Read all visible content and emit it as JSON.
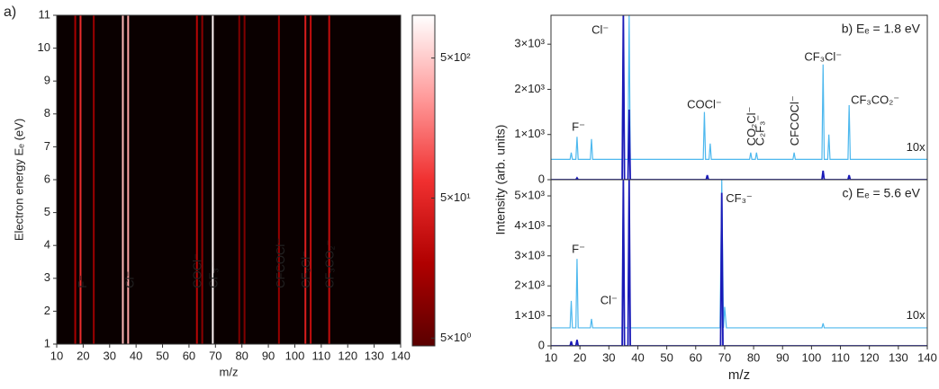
{
  "chart_data": [
    {
      "type": "heatmap",
      "panel": "a)",
      "xlabel": "m/z",
      "ylabel": "Electron energy Eₑ (eV)",
      "xlim": [
        10,
        140
      ],
      "xticks": [
        10,
        20,
        30,
        40,
        50,
        60,
        70,
        80,
        90,
        100,
        110,
        120,
        130,
        140
      ],
      "ylim": [
        1,
        11
      ],
      "yticks": [
        1,
        2,
        3,
        4,
        5,
        6,
        7,
        8,
        9,
        10,
        11
      ],
      "clim": [
        4.4,
        1010
      ],
      "clog": true,
      "colormap": [
        "#5a0000",
        "#b00000",
        "#f03030",
        "#ff9a9a",
        "#ffffff"
      ],
      "cticks": [
        {
          "value": 5,
          "label": "5×10⁰"
        },
        {
          "value": 50,
          "label": "5×10¹"
        },
        {
          "value": 500,
          "label": "5×10²"
        }
      ],
      "stripes": {
        "x": [
          17,
          19,
          24,
          35,
          37,
          63,
          65,
          69,
          79,
          81,
          94,
          104,
          106,
          113
        ],
        "values": [
          15,
          60,
          12,
          400,
          300,
          20,
          10,
          900,
          8,
          8,
          12,
          40,
          25,
          25
        ]
      },
      "annotations": [
        {
          "text": "F⁻",
          "x": 20,
          "y": 2.7,
          "color": "#33c8e8"
        },
        {
          "text": "Cl⁻",
          "x": 38,
          "y": 2.7,
          "color": "#33c8e8"
        },
        {
          "text": "COCl⁻",
          "x": 63.5,
          "y": 2.7,
          "color": "#33c8e8"
        },
        {
          "text": "CF₃⁻",
          "x": 69.5,
          "y": 2.7,
          "color": "#33c8e8"
        },
        {
          "text": "CFCOCl⁻",
          "x": 95,
          "y": 2.7,
          "color": "#33c8e8"
        },
        {
          "text": "CF₃Cl⁻",
          "x": 104.5,
          "y": 2.7,
          "color": "#33c8e8"
        },
        {
          "text": "CF₃CO₂⁻",
          "x": 113.5,
          "y": 2.7,
          "color": "#cccccc"
        }
      ]
    },
    {
      "type": "spectrum",
      "title": "b) Eₑ = 1.8 eV",
      "ylabel": "Intensity (arb. units)",
      "xlim": [
        10,
        140
      ],
      "ylim": [
        0,
        3640
      ],
      "yticks": [
        0,
        {
          "value": 1000,
          "label": "1×10³"
        },
        {
          "value": 2000,
          "label": "2×10³"
        },
        {
          "value": 3000,
          "label": "3×10³"
        }
      ],
      "series": [
        {
          "name": "10x",
          "color": "#4db8ee",
          "x": [
            10,
            16.6,
            17,
            17.4,
            18.6,
            19,
            19.4,
            23.6,
            24,
            24.4,
            34.6,
            35,
            35.4,
            36.6,
            37,
            37.4,
            62.6,
            63,
            63.4,
            64.6,
            65,
            65.4,
            78.6,
            79,
            79.4,
            80.6,
            81,
            81.4,
            93.6,
            94,
            94.4,
            103.6,
            104,
            104.4,
            105.6,
            106,
            106.4,
            112.6,
            113,
            113.4,
            140
          ],
          "values": [
            450,
            450,
            600,
            450,
            450,
            950,
            450,
            450,
            900,
            450,
            450,
            3640,
            450,
            450,
            3640,
            450,
            450,
            1500,
            450,
            450,
            800,
            450,
            450,
            600,
            450,
            450,
            600,
            450,
            450,
            600,
            450,
            450,
            2550,
            450,
            450,
            1000,
            450,
            450,
            1650,
            450,
            450
          ]
        },
        {
          "color": "#1a1ab8",
          "x": [
            10,
            18.6,
            19,
            19.4,
            34.6,
            35,
            35.4,
            36.6,
            37,
            37.4,
            63.6,
            64,
            64.4,
            103.6,
            104,
            104.4,
            112.6,
            113,
            113.4,
            140
          ],
          "values": [
            0,
            0,
            40,
            0,
            0,
            3640,
            0,
            0,
            1550,
            0,
            0,
            100,
            0,
            0,
            200,
            0,
            0,
            100,
            0,
            0
          ]
        }
      ],
      "annotations": [
        {
          "text": "Cl⁻",
          "x": 27,
          "y": 3300,
          "color": "#111"
        },
        {
          "text": "F⁻",
          "x": 19.5,
          "y": 1150,
          "color": "#111"
        },
        {
          "text": "COCl⁻",
          "x": 63,
          "y": 1650,
          "color": "#111"
        },
        {
          "text": "CO₂Cl⁻",
          "x": 79.5,
          "y": 750,
          "color": "#999",
          "rotated": true
        },
        {
          "text": "C₂F₃⁻",
          "x": 82.5,
          "y": 750,
          "color": "#111",
          "rotated": true
        },
        {
          "text": "CFCOCl⁻",
          "x": 94.5,
          "y": 750,
          "color": "#111",
          "rotated": true
        },
        {
          "text": "CF₃Cl⁻",
          "x": 104,
          "y": 2700,
          "color": "#111"
        },
        {
          "text": "CF₃CO₂⁻",
          "x": 122,
          "y": 1750,
          "color": "#999"
        },
        {
          "text": "10x",
          "x": 136,
          "y": 700,
          "color": "#4db8ee"
        }
      ]
    },
    {
      "type": "spectrum",
      "title": "c) Eₑ = 5.6 eV",
      "xlabel": "m/z",
      "xlim": [
        10,
        140
      ],
      "xticks": [
        10,
        20,
        30,
        40,
        50,
        60,
        70,
        80,
        90,
        100,
        110,
        120,
        130,
        140
      ],
      "ylim": [
        0,
        5540
      ],
      "yticks": [
        0,
        {
          "value": 1000,
          "label": "1×10³"
        },
        {
          "value": 2000,
          "label": "2×10³"
        },
        {
          "value": 3000,
          "label": "3×10³"
        },
        {
          "value": 4000,
          "label": "4×10³"
        },
        {
          "value": 5000,
          "label": "5×10³"
        }
      ],
      "series": [
        {
          "name": "10x",
          "color": "#4db8ee",
          "x": [
            10,
            16.6,
            17,
            17.4,
            18.6,
            19,
            19.4,
            23.6,
            24,
            24.4,
            34.6,
            35,
            35.4,
            36.6,
            37,
            37.4,
            68.4,
            69,
            69.6,
            70,
            70.6,
            103.6,
            104,
            104.4,
            140
          ],
          "values": [
            600,
            600,
            1500,
            600,
            600,
            2900,
            600,
            600,
            900,
            600,
            600,
            5540,
            600,
            600,
            5540,
            600,
            600,
            5540,
            600,
            1300,
            600,
            600,
            750,
            600,
            600
          ]
        },
        {
          "color": "#1a1ab8",
          "x": [
            10,
            16.6,
            17,
            17.4,
            18.6,
            19,
            19.4,
            34.6,
            35,
            35.4,
            36.6,
            37,
            37.4,
            68.6,
            69,
            69.4,
            140
          ],
          "values": [
            0,
            0,
            150,
            0,
            0,
            200,
            0,
            0,
            5540,
            0,
            0,
            5540,
            0,
            0,
            5100,
            0,
            0
          ]
        }
      ],
      "annotations": [
        {
          "text": "CF₃⁻",
          "x": 75,
          "y": 4900,
          "color": "#111"
        },
        {
          "text": "F⁻",
          "x": 19.5,
          "y": 3200,
          "color": "#111"
        },
        {
          "text": "Cl⁻",
          "x": 30,
          "y": 1500,
          "color": "#111"
        },
        {
          "text": "10x",
          "x": 136,
          "y": 1000,
          "color": "#4db8ee"
        }
      ]
    }
  ]
}
